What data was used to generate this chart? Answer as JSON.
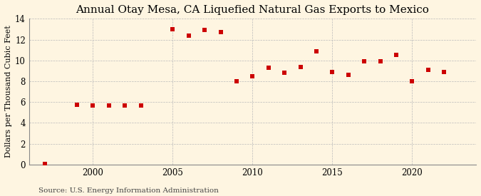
{
  "title": "Annual Otay Mesa, CA Liquefied Natural Gas Exports to Mexico",
  "ylabel": "Dollars per Thousand Cubic Feet",
  "source": "Source: U.S. Energy Information Administration",
  "background_color": "#FEF5E1",
  "marker_color": "#CC0000",
  "years": [
    1997,
    1999,
    2000,
    2001,
    2002,
    2003,
    2005,
    2006,
    2007,
    2008,
    2009,
    2010,
    2011,
    2012,
    2013,
    2014,
    2015,
    2016,
    2017,
    2018,
    2019,
    2020,
    2021,
    2022
  ],
  "values": [
    0.05,
    5.75,
    5.7,
    5.7,
    5.65,
    5.65,
    13.0,
    12.4,
    12.9,
    12.7,
    8.0,
    8.5,
    9.3,
    8.8,
    9.4,
    10.9,
    8.9,
    8.6,
    9.9,
    9.9,
    10.5,
    8.0,
    9.1,
    8.9
  ],
  "xlim": [
    1996,
    2024
  ],
  "ylim": [
    0,
    14
  ],
  "yticks": [
    0,
    2,
    4,
    6,
    8,
    10,
    12,
    14
  ],
  "xticks": [
    2000,
    2005,
    2010,
    2015,
    2020
  ],
  "grid_color": "#BBBBBB",
  "title_fontsize": 11,
  "label_fontsize": 8,
  "tick_fontsize": 8.5,
  "source_fontsize": 7.5,
  "marker_size": 5
}
